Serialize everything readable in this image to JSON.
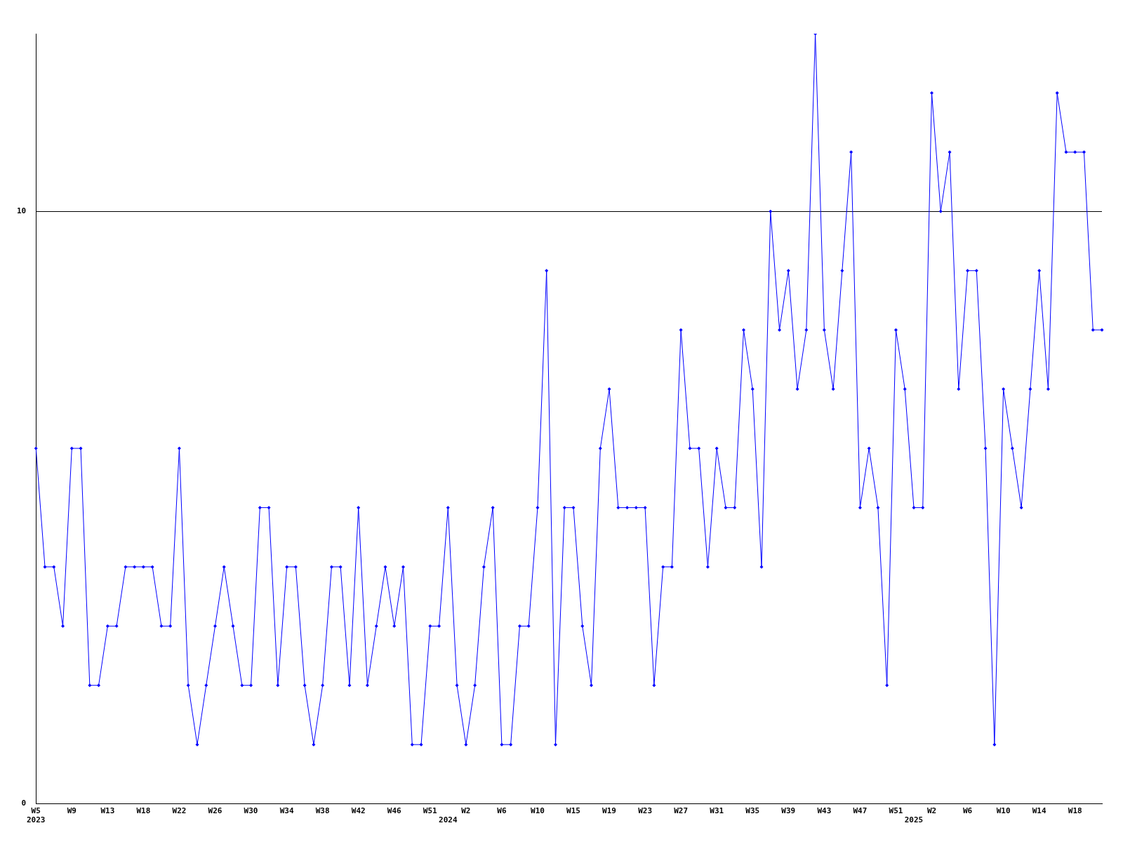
{
  "chart_data": {
    "type": "line",
    "categories": [
      "W5\n2023",
      null,
      null,
      null,
      "W9",
      null,
      null,
      null,
      "W13",
      null,
      null,
      null,
      "W18",
      null,
      null,
      null,
      "W22",
      null,
      null,
      null,
      "W26",
      null,
      null,
      null,
      "W30",
      null,
      null,
      null,
      "W34",
      null,
      null,
      null,
      "W38",
      null,
      null,
      null,
      "W42",
      null,
      null,
      null,
      "W46",
      null,
      null,
      null,
      "W51",
      null,
      "\n2024",
      null,
      "W2",
      null,
      null,
      null,
      "W6",
      null,
      null,
      null,
      "W10",
      null,
      null,
      null,
      "W15",
      null,
      null,
      null,
      "W19",
      null,
      null,
      null,
      "W23",
      null,
      null,
      null,
      "W27",
      null,
      null,
      null,
      "W31",
      null,
      null,
      null,
      "W35",
      null,
      null,
      null,
      "W39",
      null,
      null,
      null,
      "W43",
      null,
      null,
      null,
      "W47",
      null,
      null,
      null,
      "W51",
      null,
      "\n2025",
      null,
      "W2",
      null,
      null,
      null,
      "W6",
      null,
      null,
      null,
      "W10",
      null,
      null,
      null,
      "W14",
      null,
      null,
      null,
      "W18",
      null,
      null,
      null
    ],
    "series": [
      {
        "color": "#0000ff",
        "values": [
          6,
          4,
          4,
          3,
          6,
          6,
          2,
          2,
          3,
          3,
          4,
          4,
          4,
          4,
          3,
          3,
          6,
          2,
          1,
          2,
          3,
          4,
          3,
          2,
          2,
          5,
          5,
          2,
          4,
          4,
          2,
          1,
          2,
          4,
          4,
          2,
          5,
          2,
          3,
          4,
          3,
          4,
          1,
          1,
          3,
          3,
          5,
          2,
          1,
          2,
          4,
          5,
          1,
          1,
          3,
          3,
          5,
          9,
          1,
          5,
          5,
          3,
          2,
          6,
          7,
          5,
          5,
          5,
          5,
          2,
          4,
          4,
          8,
          6,
          6,
          4,
          6,
          5,
          5,
          8,
          7,
          4,
          10,
          8,
          9,
          7,
          8,
          13,
          8,
          7,
          9,
          11,
          5,
          6,
          5,
          2,
          8,
          7,
          5,
          5,
          12,
          10,
          11,
          7,
          9,
          9,
          6,
          1,
          7,
          6,
          5,
          7,
          9,
          7,
          12,
          11,
          11,
          11,
          8,
          8
        ]
      }
    ],
    "ylim": [
      0,
      13
    ],
    "yticks": [
      0,
      10
    ],
    "grid": "y",
    "legend": false,
    "marker": "diamond",
    "line_style": "solid"
  }
}
